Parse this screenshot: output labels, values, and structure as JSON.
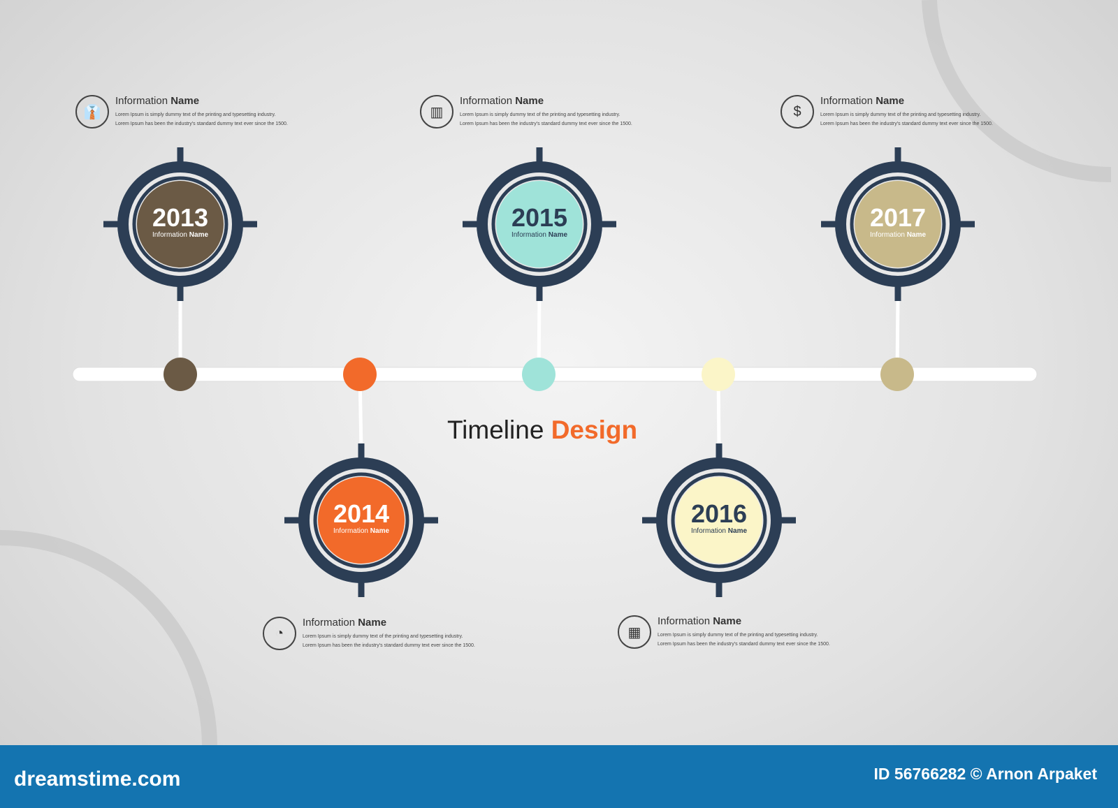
{
  "title": {
    "part1": "Timeline ",
    "part2": "Design"
  },
  "milestones": [
    {
      "year": "2013",
      "label_prefix": "Information ",
      "label_bold": "Name",
      "color": "#6b5a45",
      "text_color": "#ffffff",
      "icon": "tie-icon"
    },
    {
      "year": "2014",
      "label_prefix": "Information ",
      "label_bold": "Name",
      "color": "#f26a2a",
      "text_color": "#ffffff",
      "icon": "pie-chart-icon"
    },
    {
      "year": "2015",
      "label_prefix": "Information ",
      "label_bold": "Name",
      "color": "#9fe3d9",
      "text_color": "#2c3e55",
      "icon": "bar-chart-icon"
    },
    {
      "year": "2016",
      "label_prefix": "Information ",
      "label_bold": "Name",
      "color": "#fbf5c8",
      "text_color": "#2c3e55",
      "icon": "buildings-icon"
    },
    {
      "year": "2017",
      "label_prefix": "Information ",
      "label_bold": "Name",
      "color": "#c8b98a",
      "text_color": "#ffffff",
      "icon": "dollar-icon"
    }
  ],
  "info": {
    "title_prefix": "Information ",
    "title_bold": "Name",
    "line1": "Lorem Ipsum is simply dummy text of the printing and typesetting industry.",
    "line2": "Lorem Ipsum has been the industry's standard dummy text ever since the 1500."
  },
  "icons": {
    "tie": "👔",
    "pie": "◔",
    "bar": "▥",
    "buildings": "▦",
    "dollar": "$"
  },
  "footer": {
    "logo": "dreamstime.com",
    "credit": "ID 56766282 © Arnon Arpaket",
    "color": "#1474b0"
  },
  "ring_color": "#2c3e55"
}
